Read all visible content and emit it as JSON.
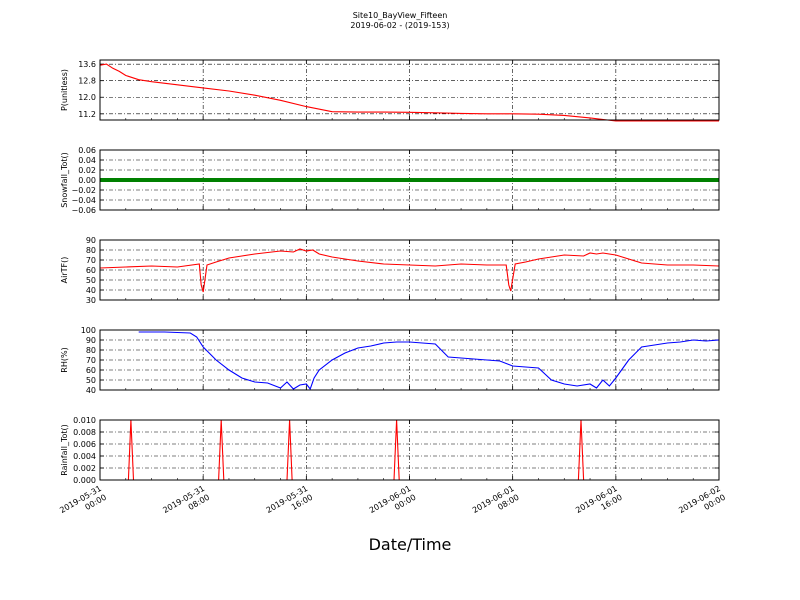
{
  "chart_data": [
    {
      "type": "line",
      "ylabel": "P(unitless)",
      "ylim": [
        10.9,
        13.8
      ],
      "yticks": [
        "13.6",
        "12.8",
        "12.0",
        "11.2"
      ],
      "ytick_values": [
        13.6,
        12.8,
        12.0,
        11.2
      ],
      "color": "#ff0000",
      "grid": true,
      "series": [
        {
          "x": [
            0,
            0.5,
            1,
            1.5,
            2,
            3,
            4,
            6,
            8,
            10,
            12,
            14,
            16,
            18,
            20,
            22,
            24,
            26,
            28,
            30,
            32,
            34,
            36,
            38,
            40,
            42,
            44,
            46,
            48
          ],
          "values": [
            13.55,
            13.6,
            13.4,
            13.25,
            13.05,
            12.85,
            12.75,
            12.6,
            12.45,
            12.3,
            12.1,
            11.85,
            11.55,
            11.3,
            11.28,
            11.28,
            11.27,
            11.25,
            11.22,
            11.2,
            11.2,
            11.18,
            11.12,
            11.0,
            10.85,
            10.85,
            10.85,
            10.85,
            10.85
          ]
        }
      ]
    },
    {
      "type": "line",
      "ylabel": "Snowfall_Tot()",
      "ylim": [
        -0.06,
        0.06
      ],
      "yticks": [
        "0.06",
        "0.04",
        "0.02",
        "0.00",
        "−0.02",
        "−0.04",
        "−0.06"
      ],
      "ytick_values": [
        0.06,
        0.04,
        0.02,
        0.0,
        -0.02,
        -0.04,
        -0.06
      ],
      "color": "#008000",
      "grid": true,
      "series": [
        {
          "x": [
            0,
            48
          ],
          "values": [
            0,
            0
          ]
        }
      ]
    },
    {
      "type": "line",
      "ylabel": "AirTF()",
      "ylim": [
        30,
        90
      ],
      "yticks": [
        "90",
        "80",
        "70",
        "60",
        "50",
        "40",
        "30"
      ],
      "ytick_values": [
        90,
        80,
        70,
        60,
        50,
        40,
        30
      ],
      "color": "#ff0000",
      "grid": true,
      "series": [
        {
          "x": [
            0,
            2,
            4,
            6,
            7.7,
            7.85,
            8,
            8.3,
            9,
            10,
            12,
            14,
            15,
            15.5,
            16,
            16.5,
            17,
            18,
            19,
            20,
            22,
            24,
            26,
            28,
            30,
            31.5,
            31.7,
            31.85,
            32.2,
            33,
            34,
            36,
            37.5,
            38,
            38.5,
            39,
            40,
            41,
            42,
            44,
            46,
            48
          ],
          "values": [
            62,
            63,
            64,
            63,
            66,
            45,
            38,
            65,
            68,
            72,
            76,
            79,
            78,
            81,
            79,
            80,
            76,
            73,
            71,
            69,
            66,
            65,
            64,
            66,
            65,
            65,
            45,
            39,
            66,
            68,
            71,
            75,
            74,
            77,
            76,
            77,
            75,
            71,
            67,
            65,
            65,
            64
          ]
        }
      ]
    },
    {
      "type": "line",
      "ylabel": "RH(%)",
      "ylim": [
        40,
        100
      ],
      "yticks": [
        "100",
        "90",
        "80",
        "70",
        "60",
        "50",
        "40"
      ],
      "ytick_values": [
        100,
        90,
        80,
        70,
        60,
        50,
        40
      ],
      "color": "#0000ff",
      "grid": true,
      "series": [
        {
          "x": [
            3,
            5,
            7,
            7.5,
            8,
            9,
            10,
            11,
            12,
            13,
            14,
            14.5,
            15,
            15.5,
            16,
            16.3,
            16.6,
            17,
            18,
            19,
            20,
            21,
            22,
            23,
            24,
            25,
            26,
            27,
            28,
            29,
            30,
            31,
            32,
            33,
            34,
            35,
            36,
            37,
            38,
            38.5,
            39,
            39.5,
            40,
            41,
            42,
            43,
            44,
            45,
            46,
            47,
            48
          ],
          "values": [
            98,
            98,
            97,
            93,
            83,
            70,
            60,
            52,
            48,
            47,
            42,
            48,
            41,
            45,
            46,
            41,
            52,
            60,
            70,
            77,
            82,
            84,
            87,
            88,
            88,
            87,
            86,
            73,
            72,
            71,
            70,
            69,
            64,
            63,
            62,
            50,
            46,
            44,
            46,
            42,
            50,
            44,
            52,
            70,
            83,
            85,
            87,
            88,
            90,
            89,
            90
          ]
        }
      ]
    },
    {
      "type": "line",
      "ylabel": "Rainfall_Tot()",
      "ylim": [
        0,
        0.01
      ],
      "yticks": [
        "0.010",
        "0.008",
        "0.006",
        "0.004",
        "0.002",
        "0.000"
      ],
      "ytick_values": [
        0.01,
        0.008,
        0.006,
        0.004,
        0.002,
        0.0
      ],
      "color": "#ff0000",
      "grid": true,
      "series": [
        {
          "x": [
            0,
            2.2,
            2.4,
            2.6,
            9.2,
            9.4,
            9.6,
            14.5,
            14.7,
            14.9,
            22.8,
            23.0,
            23.2,
            37.1,
            37.3,
            37.5,
            48
          ],
          "values": [
            0,
            0,
            0.01,
            0,
            0,
            0.01,
            0,
            0,
            0.01,
            0,
            0,
            0.01,
            0,
            0,
            0.01,
            0,
            0
          ]
        }
      ]
    }
  ],
  "title_line1": "Site10_BayView_Fifteen",
  "title_line2": "2019-06-02 - (2019-153)",
  "xlabel": "Date/Time",
  "xticks": [
    {
      "date": "2019-05-31",
      "time": "00:00",
      "value": 0
    },
    {
      "date": "2019-05-31",
      "time": "08:00",
      "value": 8
    },
    {
      "date": "2019-05-31",
      "time": "16:00",
      "value": 16
    },
    {
      "date": "2019-06-01",
      "time": "00:00",
      "value": 24
    },
    {
      "date": "2019-06-01",
      "time": "08:00",
      "value": 32
    },
    {
      "date": "2019-06-01",
      "time": "16:00",
      "value": 40
    },
    {
      "date": "2019-06-02",
      "time": "00:00",
      "value": 48
    }
  ],
  "xlim": [
    0,
    48
  ]
}
